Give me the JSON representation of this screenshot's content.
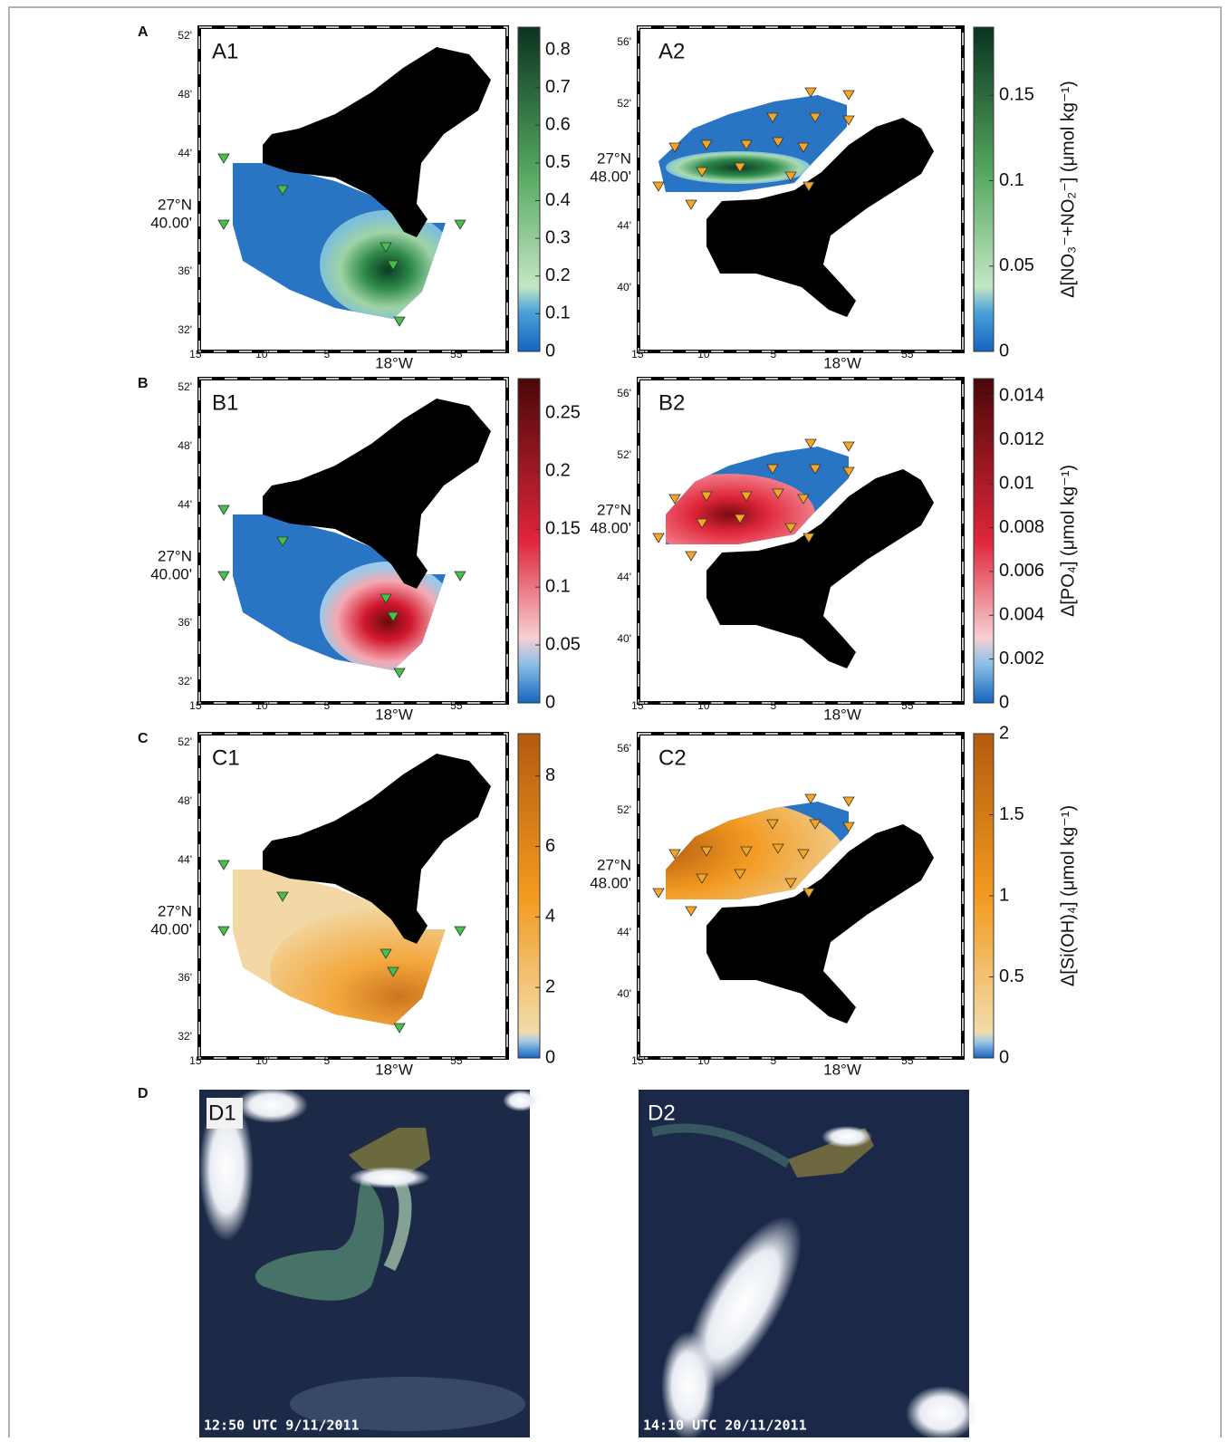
{
  "rows": [
    {
      "letter": "A",
      "left": {
        "label": "A1",
        "colorbar": {
          "lim": [
            0,
            0.86
          ],
          "ticks": [
            0,
            0.1,
            0.2,
            0.3,
            0.4,
            0.5,
            0.6,
            0.7,
            0.8
          ]
        }
      },
      "right": {
        "label": "A2",
        "colorbar": {
          "lim": [
            0,
            0.19
          ],
          "ticks": [
            0,
            0.05,
            0.1,
            0.15
          ],
          "title": "Δ[NO₃⁻+NO₂⁻] (μmol kg⁻¹)"
        }
      }
    },
    {
      "letter": "B",
      "left": {
        "label": "B1",
        "colorbar": {
          "lim": [
            0,
            0.28
          ],
          "ticks": [
            0,
            0.05,
            0.1,
            0.15,
            0.2,
            0.25
          ]
        }
      },
      "right": {
        "label": "B2",
        "colorbar": {
          "lim": [
            0,
            0.0148
          ],
          "ticks": [
            0,
            0.002,
            0.004,
            0.006,
            0.008,
            0.01,
            0.012,
            0.014
          ],
          "title": "Δ[PO₄] (μmol kg⁻¹)"
        }
      }
    },
    {
      "letter": "C",
      "left": {
        "label": "C1",
        "colorbar": {
          "lim": [
            0,
            9.2
          ],
          "ticks": [
            0,
            2,
            4,
            6,
            8
          ]
        }
      },
      "right": {
        "label": "C2",
        "colorbar": {
          "lim": [
            0,
            2
          ],
          "ticks": [
            0,
            0.5,
            1,
            1.5,
            2
          ],
          "title": "Δ[Si(OH)₄] (μmol kg⁻¹)"
        }
      }
    }
  ],
  "left_axes": {
    "x_labels": [
      "15'",
      "10'",
      "5'",
      "18°W",
      "55'"
    ],
    "y_labels": [
      "52'",
      "48'",
      "44'",
      "36'",
      "32'"
    ],
    "y_center": [
      "27°N",
      "40.00'"
    ]
  },
  "right_axes": {
    "x_labels": [
      "15'",
      "10'",
      "5'",
      "18°W",
      "55'"
    ],
    "y_labels": [
      "56'",
      "52'",
      "44'",
      "40'"
    ],
    "y_center": [
      "27°N",
      "48.00'"
    ]
  },
  "satellite": {
    "letter": "D",
    "images": [
      {
        "label": "D1",
        "timestamp": "12:50 UTC 9/11/2011"
      },
      {
        "label": "D2",
        "timestamp": "14:10 UTC 20/11/2011"
      }
    ]
  }
}
